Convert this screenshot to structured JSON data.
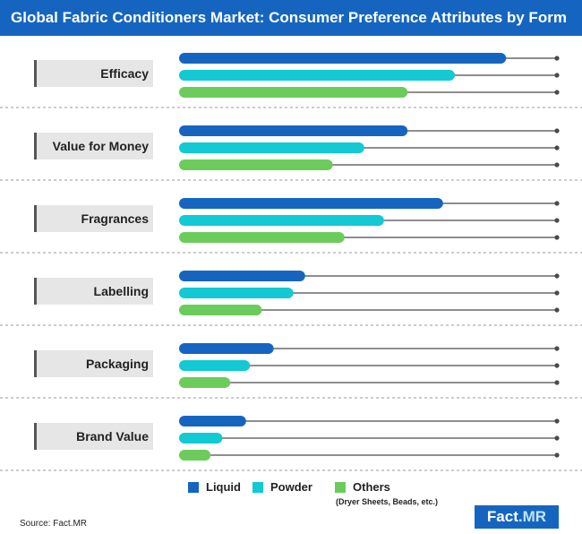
{
  "header": {
    "title": "Global Fabric Conditioners Market: Consumer Preference Attributes by Form"
  },
  "colors": {
    "title_bg": "#1565c0",
    "liquid": "#1565c0",
    "powder": "#12c9d4",
    "others": "#6ccc5b",
    "guide": "#4a4a4a",
    "label_box": "#e6e6e6"
  },
  "chart_data": {
    "type": "bar",
    "orientation": "horizontal",
    "value_axis_visible": false,
    "grid": false,
    "categories": [
      "Efficacy",
      "Value for Money",
      "Fragrances",
      "Labelling",
      "Packaging",
      "Brand Value"
    ],
    "series": [
      {
        "name": "Liquid",
        "color": "#1565c0",
        "values": [
          83,
          58,
          67,
          32,
          24,
          17
        ]
      },
      {
        "name": "Powder",
        "color": "#12c9d4",
        "values": [
          70,
          47,
          52,
          29,
          18,
          11
        ]
      },
      {
        "name": "Others",
        "color": "#6ccc5b",
        "values": [
          58,
          39,
          42,
          21,
          13,
          8
        ]
      }
    ],
    "xlim": [
      0,
      100
    ],
    "legend_position": "bottom"
  },
  "legend": {
    "items": [
      {
        "label": "Liquid",
        "color": "#1565c0"
      },
      {
        "label": "Powder",
        "color": "#12c9d4"
      },
      {
        "label": "Others",
        "color": "#6ccc5b"
      }
    ],
    "note": "(Dryer Sheets, Beads, etc.)"
  },
  "footer": {
    "source": "Source: Fact.MR"
  },
  "logo": {
    "text_main": "Fact",
    "text_accent": ".MR"
  }
}
